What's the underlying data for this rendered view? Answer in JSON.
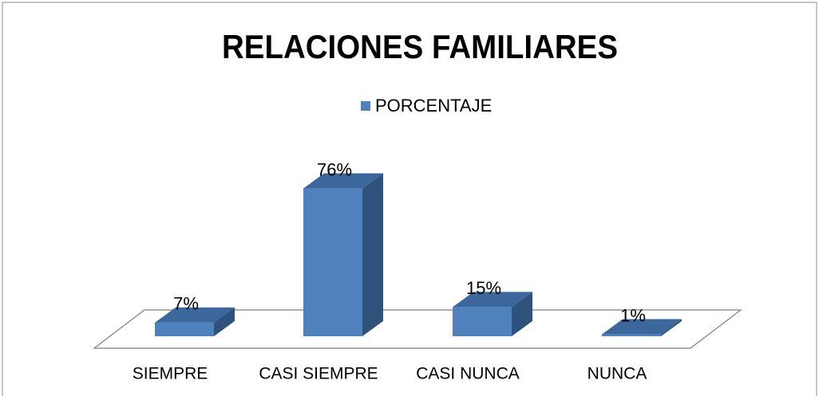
{
  "chart_data": {
    "type": "bar",
    "title": "RELACIONES FAMILIARES",
    "categories": [
      "SIEMPRE",
      "CASI SIEMPRE",
      "CASI NUNCA",
      "NUNCA"
    ],
    "series": [
      {
        "name": "PORCENTAJE",
        "color": "#4f81bd",
        "values": [
          7,
          76,
          15,
          1
        ],
        "value_labels": [
          "7%",
          "76%",
          "15%",
          "1%"
        ]
      }
    ]
  }
}
